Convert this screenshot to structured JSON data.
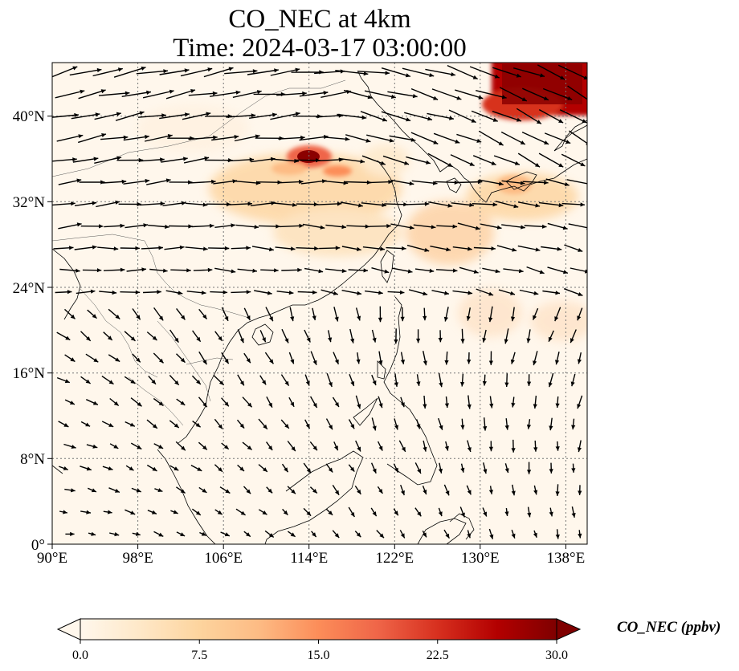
{
  "title": {
    "line1": "CO_NEC at 4km",
    "line2": "Time: 2024-03-17 03:00:00"
  },
  "map": {
    "lon_range": [
      90,
      140
    ],
    "lat_range": [
      0,
      45
    ],
    "lon_ticks": [
      "90°E",
      "98°E",
      "106°E",
      "114°E",
      "122°E",
      "130°E",
      "138°E"
    ],
    "lat_ticks": [
      "0°",
      "8°N",
      "16°N",
      "24°N",
      "32°N",
      "40°N"
    ],
    "gridlines": "dotted",
    "field_colormap": "OrRd",
    "hotspots_desc_colors": {
      "high": "#8b0000",
      "mid": "#ef6548",
      "low": "#fdd49e",
      "base": "#fff7ec"
    }
  },
  "colorbar": {
    "label": "CO_NEC (ppbv)",
    "ticks": [
      "0.0",
      "7.5",
      "15.0",
      "22.5",
      "30.0"
    ],
    "range": [
      0,
      30
    ],
    "extend": "both",
    "colors": [
      "#fff7ec",
      "#fee8c8",
      "#fdd49e",
      "#fdbb84",
      "#fc8d59",
      "#ef6548",
      "#d7301f",
      "#b30000",
      "#7f0000"
    ]
  }
}
